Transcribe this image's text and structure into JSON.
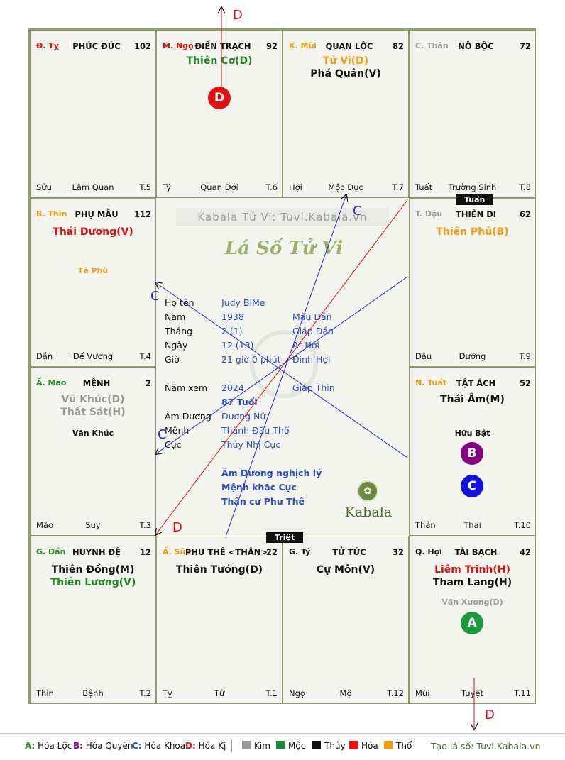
{
  "palaces": [
    {
      "pos": "Đ. Tỵ",
      "pos_color": "#d11",
      "name": "PHÚC ĐỨC",
      "num": "102",
      "majors": [],
      "minors": [],
      "bl": "Sửu",
      "bm": "Lâm Quan",
      "br": "T.5"
    },
    {
      "pos": "M. Ngọ",
      "pos_color": "#d11",
      "name": "ĐIỀN TRẠCH",
      "num": "92",
      "majors": [
        {
          "t": "Thiên Cơ(D)",
          "c": "#228b22"
        }
      ],
      "minors": [],
      "bl": "Tý",
      "bm": "Quan Đới",
      "br": "T.6"
    },
    {
      "pos": "K. Mùi",
      "pos_color": "#e89a10",
      "name": "QUAN LỘC",
      "num": "82",
      "majors": [
        {
          "t": "Tử Vi(D)",
          "c": "#f39c12"
        },
        {
          "t": "Phá Quân(V)",
          "c": "#111"
        }
      ],
      "minors": [],
      "bl": "Hợi",
      "bm": "Mộc Dục",
      "br": "T.7"
    },
    {
      "pos": "C. Thân",
      "pos_color": "#999",
      "name": "NÔ BỘC",
      "num": "72",
      "majors": [],
      "minors": [],
      "bl": "Tuất",
      "bm": "Trường Sinh",
      "br": "T.8"
    },
    {
      "pos": "B. Thìn",
      "pos_color": "#e89a10",
      "name": "PHỤ MẪU",
      "num": "112",
      "majors": [
        {
          "t": "Thái Dương(V)",
          "c": "#e01010"
        }
      ],
      "minors": [
        {
          "t": "Tả Phù",
          "c": "#f39c12"
        }
      ],
      "bl": "Dần",
      "bm": "Đế Vượng",
      "br": "T.4"
    },
    {
      "pos": "T. Dậu",
      "pos_color": "#999",
      "name": "THIÊN DI",
      "num": "62",
      "majors": [
        {
          "t": "Thiên Phủ(B)",
          "c": "#f39c12"
        }
      ],
      "minors": [],
      "bl": "Dậu",
      "bm": "Dưỡng",
      "br": "T.9"
    },
    {
      "pos": "Ấ. Mão",
      "pos_color": "#228b22",
      "name": "MỆNH",
      "num": "2",
      "majors": [
        {
          "t": "Vũ Khúc(D)",
          "c": "#999"
        },
        {
          "t": "Thất Sát(H)",
          "c": "#999"
        }
      ],
      "minors": [
        {
          "t": "Văn Khúc",
          "c": "#111"
        }
      ],
      "bl": "Mão",
      "bm": "Suy",
      "br": "T.3"
    },
    {
      "pos": "N. Tuất",
      "pos_color": "#e89a10",
      "name": "TẬT ÁCH",
      "num": "52",
      "majors": [
        {
          "t": "Thái Âm(M)",
          "c": "#111"
        }
      ],
      "minors": [
        {
          "t": "Hữu Bật",
          "c": "#111"
        }
      ],
      "bl": "Thân",
      "bm": "Thai",
      "br": "T.10"
    },
    {
      "pos": "G. Dần",
      "pos_color": "#228b22",
      "name": "HUYNH ĐỆ",
      "num": "12",
      "majors": [
        {
          "t": "Thiên Đồng(M)",
          "c": "#111"
        },
        {
          "t": "Thiên Lương(V)",
          "c": "#228b22"
        }
      ],
      "minors": [],
      "bl": "Thìn",
      "bm": "Bệnh",
      "br": "T.2"
    },
    {
      "pos": "Ấ. Sửu",
      "pos_color": "#e89a10",
      "name": "PHU THÊ <THÂN>",
      "num": "22",
      "majors": [
        {
          "t": "Thiên Tướng(D)",
          "c": "#111"
        }
      ],
      "minors": [],
      "bl": "Tỵ",
      "bm": "Tử",
      "br": "T.1"
    },
    {
      "pos": "G. Tý",
      "pos_color": "#111",
      "name": "TỬ TỨC",
      "num": "32",
      "majors": [
        {
          "t": "Cự Môn(V)",
          "c": "#111"
        }
      ],
      "minors": [],
      "bl": "Ngọ",
      "bm": "Mộ",
      "br": "T.12"
    },
    {
      "pos": "Q. Hợi",
      "pos_color": "#111",
      "name": "TÀI BẠCH",
      "num": "42",
      "majors": [
        {
          "t": "Liêm Trinh(H)",
          "c": "#e01010"
        },
        {
          "t": "Tham Lang(H)",
          "c": "#111"
        }
      ],
      "minors": [
        {
          "t": "Văn Xương(D)",
          "c": "#999"
        }
      ],
      "bl": "Mùi",
      "bm": "Tuyệt",
      "br": "T.11"
    }
  ],
  "badges": {
    "d": "D",
    "b": "B",
    "c": "C",
    "a": "A"
  },
  "tags": {
    "tuan": "Tuần",
    "triet": "Triệt"
  },
  "center": {
    "watermark": "Kabala Tử Vi: Tuvi.Kabala.vn",
    "title": "Lá Số Tử Vi",
    "brand": "Kabala",
    "rows": [
      {
        "label": "Họ tên",
        "v1": "Judy BlMe",
        "v2": ""
      },
      {
        "label": "Năm",
        "v1": "1938",
        "v2": "Mậu Dần"
      },
      {
        "label": "Tháng",
        "v1": "2  (1)",
        "v2": "Giáp Dần"
      },
      {
        "label": "Ngày",
        "v1": "12  (13)",
        "v2": "Ất Hợi"
      },
      {
        "label": "Giờ",
        "v1": "21 giờ 0 phút",
        "v2": "Đinh Hợi"
      }
    ],
    "namxem": {
      "label": "Năm xem",
      "v1": "2024",
      "v2": "Giáp Thìn"
    },
    "tuoi": "87 Tuổi",
    "rows2": [
      {
        "label": "Âm Dương",
        "v1": "Dương Nữ"
      },
      {
        "label": "Mệnh",
        "v1": "Thành Đầu Thổ"
      },
      {
        "label": "Cục",
        "v1": "Thủy Nhị Cục"
      }
    ],
    "notes": [
      "Âm Dương nghịch lý",
      "Mệnh khắc Cục",
      "Thân cư Phu Thê"
    ]
  },
  "arrow_labels": {
    "d_top": "D",
    "c_top": "C",
    "c_left1": "C",
    "c_left2": "C",
    "d_bottom_left": "D",
    "d_bottom": "D"
  },
  "legend": {
    "hoa": [
      {
        "k": "A:",
        "v": " Hóa Lộc",
        "c": "#228b22"
      },
      {
        "k": "B:",
        "v": " Hóa Quyền",
        "c": "#800080"
      },
      {
        "k": "C:",
        "v": " Hóa Khoa",
        "c": "#2a4ec4"
      },
      {
        "k": "D:",
        "v": " Hóa Kị",
        "c": "#d11"
      }
    ],
    "elements": [
      {
        "v": "Kim",
        "c": "#999999"
      },
      {
        "v": "Mộc",
        "c": "#1a8a3a"
      },
      {
        "v": "Thủy",
        "c": "#111111"
      },
      {
        "v": "Hỏa",
        "c": "#ee1111"
      },
      {
        "v": "Thổ",
        "c": "#f39c12"
      }
    ],
    "credit": "Tạo lá số: Tuvi.Kabala.vn"
  }
}
